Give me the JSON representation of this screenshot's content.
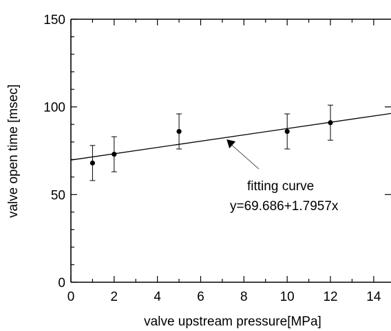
{
  "chart_data": {
    "type": "scatter",
    "xlabel": "valve upstream pressure[MPa]",
    "ylabel": "valve open time [msec]",
    "xlim": [
      0,
      14.8
    ],
    "ylim": [
      0,
      150
    ],
    "x_ticks": [
      0,
      2,
      4,
      6,
      8,
      10,
      12,
      14
    ],
    "y_ticks": [
      0,
      50,
      100,
      150
    ],
    "x_tick_labels": [
      "0",
      "2",
      "4",
      "6",
      "8",
      "10",
      "12",
      "14"
    ],
    "y_tick_labels": [
      "0",
      "50",
      "100",
      "150"
    ],
    "grid": false,
    "points": [
      {
        "x": 1,
        "y": 68,
        "err": 10
      },
      {
        "x": 2,
        "y": 73,
        "err": 10
      },
      {
        "x": 5,
        "y": 86,
        "err": 10
      },
      {
        "x": 10,
        "y": 86,
        "err": 10
      },
      {
        "x": 12,
        "y": 91,
        "err": 10
      }
    ],
    "fit": {
      "intercept": 69.686,
      "slope": 1.7957
    },
    "annotation": {
      "line1": "fitting curve",
      "line2": "y=69.686+1.7957x",
      "arrow_target_x": 7.2
    }
  }
}
